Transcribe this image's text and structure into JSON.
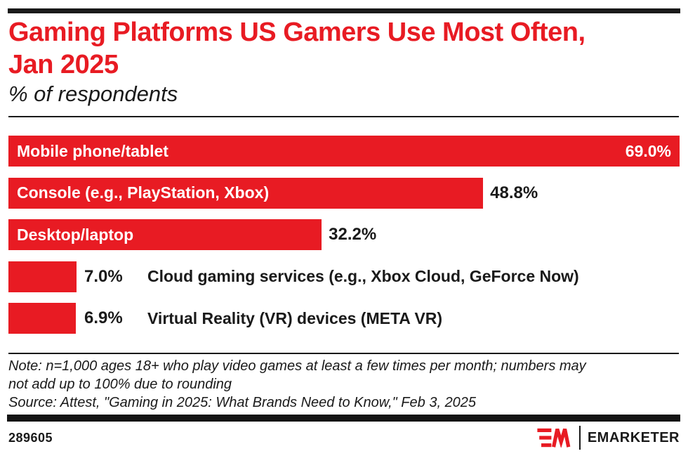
{
  "header": {
    "title_line1": "Gaming Platforms US Gamers Use Most Often,",
    "title_line2": "Jan 2025",
    "subtitle": "% of respondents"
  },
  "chart_data": {
    "type": "bar",
    "orientation": "horizontal",
    "title": "Gaming Platforms US Gamers Use Most Often, Jan 2025",
    "xlabel": "",
    "ylabel": "% of respondents",
    "xlim": [
      0,
      69
    ],
    "grid": false,
    "legend": "none",
    "bar_color": "#e81b23",
    "categories": [
      "Mobile phone/tablet",
      "Console (e.g., PlayStation, Xbox)",
      "Desktop/laptop",
      "Cloud gaming services (e.g., Xbox Cloud, GeForce Now)",
      "Virtual Reality (VR) devices (META VR)"
    ],
    "values": [
      69.0,
      48.8,
      32.2,
      7.0,
      6.9
    ],
    "rows": [
      {
        "label": "Mobile phone/tablet",
        "value": 69.0,
        "value_label": "69.0%",
        "label_placement": "inside",
        "value_placement": "inside"
      },
      {
        "label": "Console (e.g., PlayStation, Xbox)",
        "value": 48.8,
        "value_label": "48.8%",
        "label_placement": "inside",
        "value_placement": "after-bar"
      },
      {
        "label": "Desktop/laptop",
        "value": 32.2,
        "value_label": "32.2%",
        "label_placement": "inside",
        "value_placement": "after-bar"
      },
      {
        "label": "Cloud gaming services (e.g., Xbox Cloud, GeForce Now)",
        "value": 7.0,
        "value_label": "7.0%",
        "label_placement": "outside",
        "value_placement": "outside-fixed"
      },
      {
        "label": "Virtual Reality (VR) devices (META VR)",
        "value": 6.9,
        "value_label": "6.9%",
        "label_placement": "outside",
        "value_placement": "outside-fixed"
      }
    ]
  },
  "footnote": {
    "note_lines": [
      "Note: n=1,000 ages 18+ who play video games at least a few times per month; numbers may",
      "not add up to 100% due to rounding"
    ],
    "source": "Source: Attest, \"Gaming in 2025: What Brands Need to Know,\" Feb 3, 2025"
  },
  "footer": {
    "chart_id": "289605",
    "brand": "EMARKETER"
  }
}
